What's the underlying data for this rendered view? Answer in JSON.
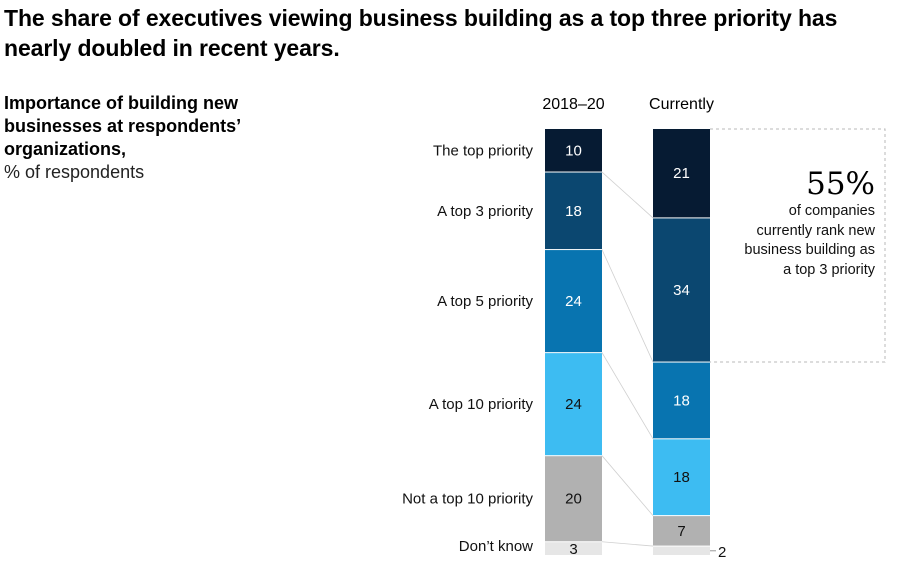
{
  "title": "The share of executives viewing business building as a top three priority has nearly doubled in recent years.",
  "subtitle": {
    "bold": "Importance of building new businesses at respondents’ organizations,",
    "unit": "% of respondents"
  },
  "callout": {
    "value": "55%",
    "text": "of companies currently rank new business building as a top 3 priority"
  },
  "colors": {
    "The top priority": "#061b33",
    "A top 3 priority": "#0b4770",
    "A top 5 priority": "#0874b0",
    "A top 10 priority": "#3dbcf2",
    "Not a top 10 priority": "#b1b1b1",
    "Don’t know": "#e6e6e6"
  },
  "chart_data": {
    "type": "bar",
    "stacked": true,
    "title": "The share of executives viewing business building as a top three priority has nearly doubled in recent years.",
    "ylabel": "% of respondents",
    "categories": [
      "2018–20",
      "Currently"
    ],
    "series": [
      {
        "name": "The top priority",
        "values": [
          10,
          21
        ]
      },
      {
        "name": "A top 3 priority",
        "values": [
          18,
          34
        ]
      },
      {
        "name": "A top 5 priority",
        "values": [
          24,
          18
        ]
      },
      {
        "name": "A top 10 priority",
        "values": [
          24,
          18
        ]
      },
      {
        "name": "Not a top 10 priority",
        "values": [
          20,
          7
        ]
      },
      {
        "name": "Don’t know",
        "values": [
          3,
          2
        ]
      }
    ]
  }
}
